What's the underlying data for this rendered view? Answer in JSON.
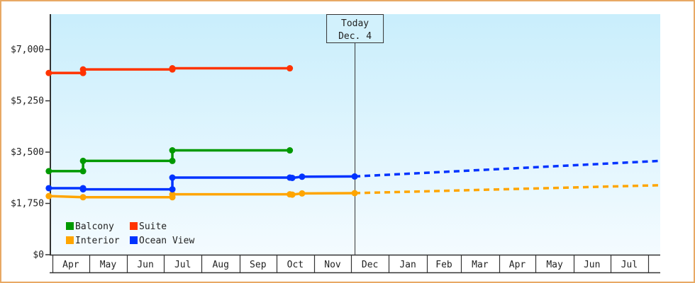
{
  "chart_data": {
    "type": "line",
    "title": "",
    "xlabel": "",
    "ylabel": "",
    "ylim": [
      0,
      8000
    ],
    "yticks": [
      "$0",
      "$1,750",
      "$3,500",
      "$5,250",
      "$7,000"
    ],
    "ytick_values": [
      0,
      1750,
      3500,
      5250,
      7000
    ],
    "xticks": [
      "Apr",
      "May",
      "Jun",
      "Jul",
      "Aug",
      "Sep",
      "Oct",
      "Nov",
      "Dec",
      "Jan",
      "Feb",
      "Mar",
      "Apr",
      "May",
      "Jun",
      "Jul"
    ],
    "grid": false,
    "legend_position": "bottom-left",
    "today_marker": {
      "line1": "Today",
      "line2": "Dec. 4",
      "x": "Dec 4"
    },
    "series": [
      {
        "name": "Balcony",
        "color": "#009900",
        "step": true,
        "points": [
          [
            "Mar 29",
            2850
          ],
          [
            "Apr 26",
            2850
          ],
          [
            "Apr 26",
            3200
          ],
          [
            "Jul 8",
            3200
          ],
          [
            "Jul 8",
            3560
          ],
          [
            "Oct 12",
            3560
          ]
        ]
      },
      {
        "name": "Suite",
        "color": "#ff3300",
        "step": true,
        "points": [
          [
            "Mar 29",
            6200
          ],
          [
            "Apr 26",
            6200
          ],
          [
            "Apr 26",
            6320
          ],
          [
            "Jul 8",
            6320
          ],
          [
            "Jul 8",
            6360
          ],
          [
            "Oct 12",
            6360
          ]
        ]
      },
      {
        "name": "Interior",
        "color": "#ffa500",
        "step": true,
        "points": [
          [
            "Mar 29",
            2000
          ],
          [
            "Apr 26",
            1960
          ],
          [
            "Jul 8",
            1960
          ],
          [
            "Jul 8",
            2060
          ],
          [
            "Oct 12",
            2060
          ],
          [
            "Oct 14",
            2050
          ],
          [
            "Oct 22",
            2090
          ],
          [
            "Dec 4",
            2100
          ]
        ],
        "projection": [
          [
            "Dec 4",
            2100
          ],
          [
            "Aug 10",
            2370
          ]
        ]
      },
      {
        "name": "Ocean View",
        "color": "#0033ff",
        "step": true,
        "points": [
          [
            "Mar 29",
            2270
          ],
          [
            "Apr 26",
            2270
          ],
          [
            "Apr 26",
            2230
          ],
          [
            "Jul 8",
            2230
          ],
          [
            "Jul 8",
            2630
          ],
          [
            "Oct 12",
            2630
          ],
          [
            "Oct 14",
            2620
          ],
          [
            "Oct 22",
            2660
          ],
          [
            "Dec 4",
            2670
          ]
        ],
        "projection": [
          [
            "Dec 4",
            2670
          ],
          [
            "Aug 10",
            3200
          ]
        ]
      }
    ]
  }
}
